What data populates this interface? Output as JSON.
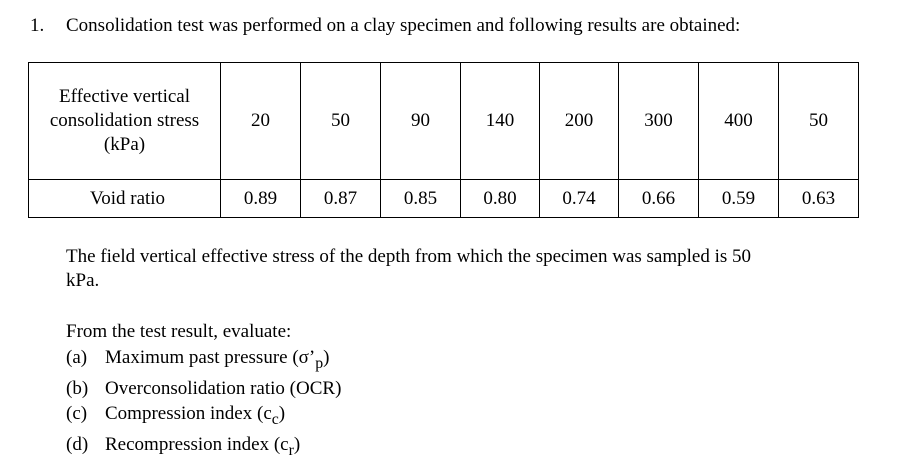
{
  "question": {
    "number": "1.",
    "text": "Consolidation test was performed on a clay specimen and following results are obtained:"
  },
  "table": {
    "stress_label": [
      "Effective vertical",
      "consolidation stress",
      "(kPa)"
    ],
    "stress_values": [
      "20",
      "50",
      "90",
      "140",
      "200",
      "300",
      "400",
      "50"
    ],
    "void_label": "Void ratio",
    "void_values": [
      "0.89",
      "0.87",
      "0.85",
      "0.80",
      "0.74",
      "0.66",
      "0.59",
      "0.63"
    ]
  },
  "field_paragraph": {
    "line1": "The field vertical effective stress of the depth from which the specimen was sampled is 50",
    "line2": "kPa."
  },
  "evaluate_intro": "From the test result, evaluate:",
  "tasks": [
    {
      "tag": "(a)",
      "text": "Maximum past pressure (σ’",
      "sub": "p",
      "close": ")"
    },
    {
      "tag": "(b)",
      "text": "Overconsolidation ratio (OCR)",
      "sub": "",
      "close": ""
    },
    {
      "tag": "(c)",
      "text": "Compression index (c",
      "sub": "c",
      "close": ")"
    },
    {
      "tag": "(d)",
      "text": "Recompression index (c",
      "sub": "r",
      "close": ")"
    }
  ]
}
